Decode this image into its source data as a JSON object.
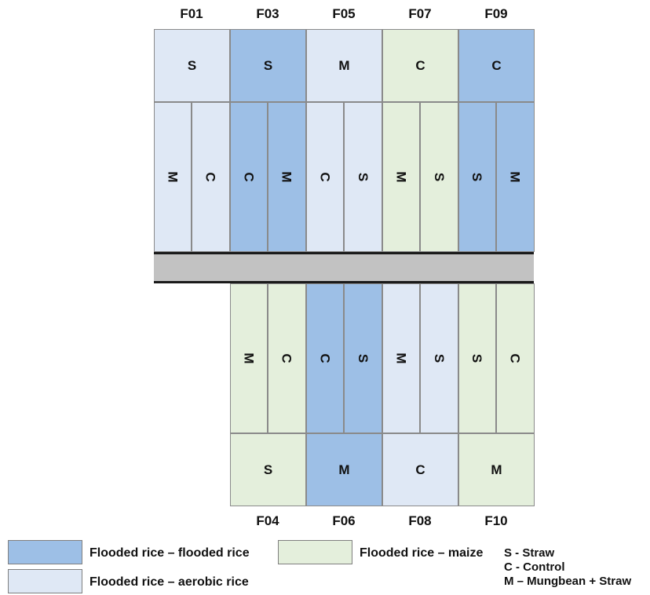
{
  "colors": {
    "flooded_flooded": "#9dbfe6",
    "flooded_aerobic": "#dfe8f5",
    "flooded_maize": "#e4efdc",
    "road": "#c2c2c2"
  },
  "top_plots": [
    {
      "id": "F01",
      "treatment": "flooded_aerobic",
      "main": "S",
      "halves": [
        "M",
        "C"
      ]
    },
    {
      "id": "F03",
      "treatment": "flooded_flooded",
      "main": "S",
      "halves": [
        "C",
        "M"
      ]
    },
    {
      "id": "F05",
      "treatment": "flooded_aerobic",
      "main": "M",
      "halves": [
        "C",
        "S"
      ]
    },
    {
      "id": "F07",
      "treatment": "flooded_maize",
      "main": "C",
      "halves": [
        "M",
        "S"
      ]
    },
    {
      "id": "F09",
      "treatment": "flooded_flooded",
      "main": "C",
      "halves": [
        "S",
        "M"
      ]
    }
  ],
  "bottom_plots": [
    {
      "id": "F04",
      "treatment": "flooded_maize",
      "main": "S",
      "halves": [
        "M",
        "C"
      ]
    },
    {
      "id": "F06",
      "treatment": "flooded_flooded",
      "main": "M",
      "halves": [
        "C",
        "S"
      ]
    },
    {
      "id": "F08",
      "treatment": "flooded_aerobic",
      "main": "C",
      "halves": [
        "M",
        "S"
      ]
    },
    {
      "id": "F10",
      "treatment": "flooded_maize",
      "main": "M",
      "halves": [
        "S",
        "C"
      ]
    }
  ],
  "legend": {
    "flooded_flooded": "Flooded rice – flooded rice",
    "flooded_aerobic": "Flooded rice – aerobic rice",
    "flooded_maize": "Flooded rice – maize",
    "key": [
      "S - Straw",
      "C - Control",
      "M – Mungbean + Straw"
    ]
  }
}
